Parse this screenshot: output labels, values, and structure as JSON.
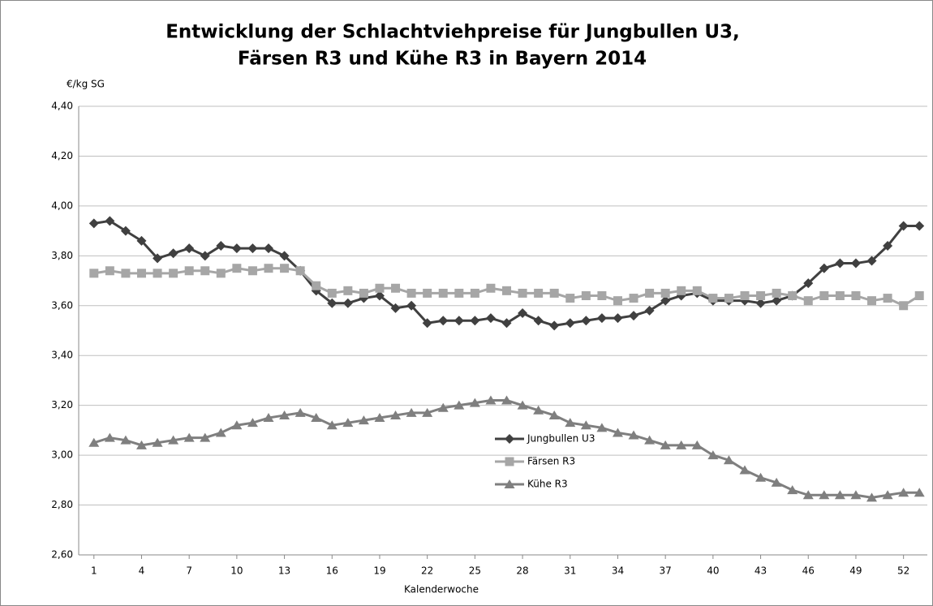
{
  "chart_data": {
    "type": "line",
    "title": [
      "Entwicklung der Schlachtviehpreise für Jungbullen U3,",
      "Färsen R3 und Kühe R3 in Bayern 2014"
    ],
    "y_label": "€/kg SG",
    "x_label": "Kalenderwoche",
    "categories": [
      "1",
      null,
      null,
      "4",
      null,
      null,
      "7",
      null,
      null,
      "10",
      null,
      null,
      "13",
      null,
      null,
      "16",
      null,
      null,
      "19",
      null,
      null,
      "22",
      null,
      null,
      "25",
      null,
      null,
      "28",
      null,
      null,
      "31",
      null,
      null,
      "34",
      null,
      null,
      "37",
      null,
      null,
      "40",
      null,
      null,
      "43",
      null,
      null,
      "46",
      null,
      null,
      "49",
      null,
      null,
      "52",
      null
    ],
    "series": [
      {
        "name": "Jungbullen U3",
        "color": "#404040",
        "marker": "diamond",
        "values": [
          3.93,
          3.94,
          3.9,
          3.86,
          3.79,
          3.81,
          3.83,
          3.8,
          3.84,
          3.83,
          3.83,
          3.83,
          3.8,
          3.74,
          3.66,
          3.61,
          3.61,
          3.63,
          3.64,
          3.59,
          3.6,
          3.53,
          3.54,
          3.54,
          3.54,
          3.55,
          3.53,
          3.57,
          3.54,
          3.52,
          3.53,
          3.54,
          3.55,
          3.55,
          3.56,
          3.58,
          3.62,
          3.64,
          3.65,
          3.62,
          3.62,
          3.62,
          3.61,
          3.62,
          3.64,
          3.69,
          3.75,
          3.77,
          3.77,
          3.78,
          3.84,
          3.92,
          3.92
        ]
      },
      {
        "name": "Färsen R3",
        "color": "#a6a6a6",
        "marker": "square",
        "values": [
          3.73,
          3.74,
          3.73,
          3.73,
          3.73,
          3.73,
          3.74,
          3.74,
          3.73,
          3.75,
          3.74,
          3.75,
          3.75,
          3.74,
          3.68,
          3.65,
          3.66,
          3.65,
          3.67,
          3.67,
          3.65,
          3.65,
          3.65,
          3.65,
          3.65,
          3.67,
          3.66,
          3.65,
          3.65,
          3.65,
          3.63,
          3.64,
          3.64,
          3.62,
          3.63,
          3.65,
          3.65,
          3.66,
          3.66,
          3.63,
          3.63,
          3.64,
          3.64,
          3.65,
          3.64,
          3.62,
          3.64,
          3.64,
          3.64,
          3.62,
          3.63,
          3.6,
          3.64
        ]
      },
      {
        "name": "Kühe R3",
        "color": "#7f7f7f",
        "marker": "triangle",
        "values": [
          3.05,
          3.07,
          3.06,
          3.04,
          3.05,
          3.06,
          3.07,
          3.07,
          3.09,
          3.12,
          3.13,
          3.15,
          3.16,
          3.17,
          3.15,
          3.12,
          3.13,
          3.14,
          3.15,
          3.16,
          3.17,
          3.17,
          3.19,
          3.2,
          3.21,
          3.22,
          3.22,
          3.2,
          3.18,
          3.16,
          3.13,
          3.12,
          3.11,
          3.09,
          3.08,
          3.06,
          3.04,
          3.04,
          3.04,
          3.0,
          2.98,
          2.94,
          2.91,
          2.89,
          2.86,
          2.84,
          2.84,
          2.84,
          2.84,
          2.83,
          2.84,
          2.85,
          2.85
        ]
      }
    ],
    "ylim": [
      2.6,
      4.4
    ],
    "yticks": [
      {
        "value": 2.6,
        "label": "2,60"
      },
      {
        "value": 2.8,
        "label": "2,80"
      },
      {
        "value": 3.0,
        "label": "3,00"
      },
      {
        "value": 3.2,
        "label": "3,20"
      },
      {
        "value": 3.4,
        "label": "3,40"
      },
      {
        "value": 3.6,
        "label": "3,60"
      },
      {
        "value": 3.8,
        "label": "3,80"
      },
      {
        "value": 4.0,
        "label": "4,00"
      },
      {
        "value": 4.2,
        "label": "4,20"
      },
      {
        "value": 4.4,
        "label": "4,40"
      }
    ],
    "grid": true,
    "legend": "center"
  }
}
